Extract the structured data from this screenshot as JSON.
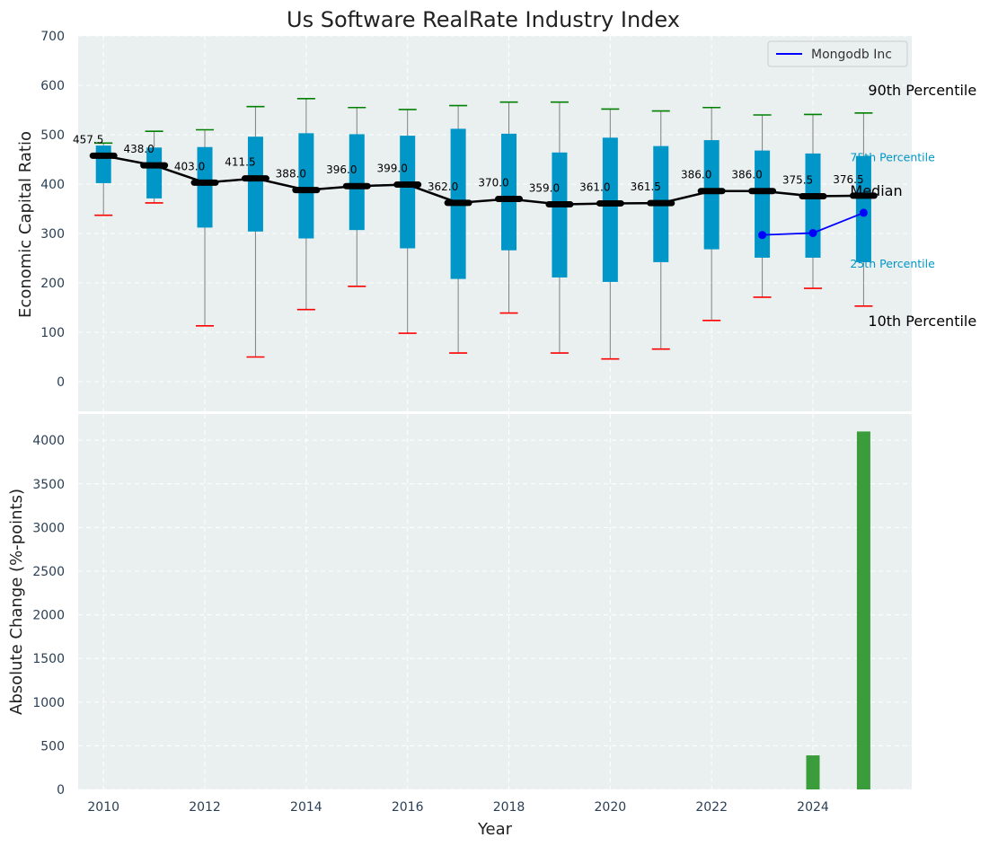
{
  "chart_data": [
    {
      "type": "box",
      "title": "Us Software RealRate Industry Index",
      "xlabel": "",
      "ylabel": "Economic Capital Ratio",
      "ylim": [
        -60,
        700
      ],
      "yticks": [
        0,
        100,
        200,
        300,
        400,
        500,
        600,
        700
      ],
      "grid": true,
      "legend": {
        "entries": [
          "Mongodb Inc"
        ],
        "placement": "top-right"
      },
      "colors": {
        "box": "#0096c7",
        "median": "#000000",
        "p10": "#ff0000",
        "p90": "#008000",
        "whisker": "#808080",
        "company": "#0000ff",
        "background": "#eaeff0"
      },
      "years": [
        2010,
        2011,
        2012,
        2013,
        2014,
        2015,
        2016,
        2017,
        2018,
        2019,
        2020,
        2021,
        2022,
        2023,
        2024,
        2025
      ],
      "p10": [
        337,
        362,
        113,
        50,
        146,
        193,
        98,
        58,
        139,
        58,
        46,
        66,
        124,
        171,
        189,
        153
      ],
      "p25": [
        402,
        371,
        312,
        304,
        290,
        307,
        270,
        208,
        266,
        211,
        202,
        242,
        268,
        251,
        251,
        242
      ],
      "median": [
        457.5,
        438.0,
        403.0,
        411.5,
        388.0,
        396.0,
        399.0,
        362.0,
        370.0,
        359.0,
        361.0,
        361.5,
        386.0,
        386.0,
        375.5,
        376.5
      ],
      "median_labels": [
        "457.5",
        "438.0",
        "403.0",
        "411.5",
        "388.0",
        "396.0",
        "399.0",
        "362.0",
        "370.0",
        "359.0",
        "361.0",
        "361.5",
        "386.0",
        "386.0",
        "375.5",
        "376.5"
      ],
      "p75": [
        478,
        474,
        475,
        496,
        503,
        501,
        498,
        512,
        502,
        464,
        494,
        477,
        489,
        468,
        462,
        457
      ],
      "p90": [
        483,
        507,
        510,
        557,
        573,
        555,
        551,
        559,
        566,
        566,
        552,
        548,
        555,
        540,
        541,
        544
      ],
      "company": {
        "name": "Mongodb Inc",
        "x": [
          2023,
          2024,
          2025
        ],
        "values": [
          297,
          301,
          342
        ]
      },
      "annotations": [
        {
          "text": "90th Percentile",
          "anchor": "p90"
        },
        {
          "text": "75th Percentile",
          "anchor": "p75"
        },
        {
          "text": "Median",
          "anchor": "median"
        },
        {
          "text": "25th Percentile",
          "anchor": "p25"
        },
        {
          "text": "10th Percentile",
          "anchor": "p10"
        }
      ]
    },
    {
      "type": "bar",
      "xlabel": "Year",
      "ylabel": "Absolute Change (%-points)",
      "ylim": [
        0,
        4300
      ],
      "yticks": [
        0,
        500,
        1000,
        1500,
        2000,
        2500,
        3000,
        3500,
        4000
      ],
      "xticks": [
        2010,
        2012,
        2014,
        2016,
        2018,
        2020,
        2022,
        2024
      ],
      "xlim": [
        2009.5,
        2025.95
      ],
      "grid": true,
      "color": "#3a9c3a",
      "x": [
        2024,
        2025
      ],
      "values": [
        390,
        4100
      ]
    }
  ]
}
